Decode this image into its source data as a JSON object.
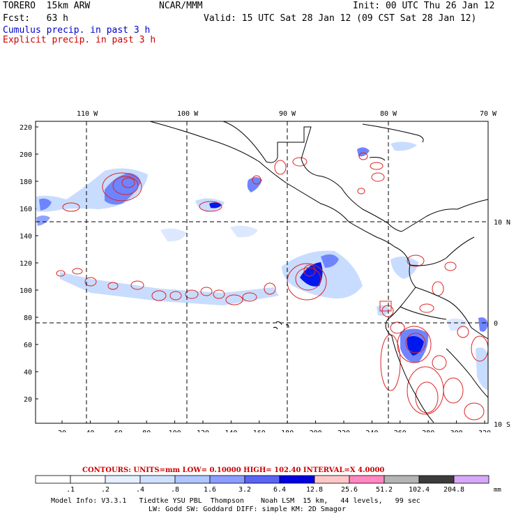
{
  "header": {
    "model": "TORERO  15km ARW",
    "center": "NCAR/MMM",
    "init": "Init: 00 UTC Thu 26 Jan 12",
    "fcst": "Fcst:   63 h",
    "valid": "Valid: 15 UTC Sat 28 Jan 12 (09 CST Sat 28 Jan 12)",
    "cumulus": "Cumulus precip. in past 3 h",
    "explicit": "Explicit precip. in past 3 h"
  },
  "map": {
    "top_lon_labels": [
      "110 W",
      "100 W",
      "90 W",
      "80 W",
      "70 W"
    ],
    "right_lat_labels": [
      "10 N",
      "0",
      "10 S"
    ],
    "y_ticks": [
      "220",
      "200",
      "180",
      "160",
      "140",
      "120",
      "100",
      "80",
      "60",
      "40",
      "20"
    ],
    "x_ticks": [
      "20",
      "40",
      "60",
      "80",
      "100",
      "120",
      "140",
      "160",
      "180",
      "200",
      "220",
      "240",
      "260",
      "280",
      "300",
      "320"
    ],
    "colors": {
      "contour": "#dd2222",
      "coast": "#000000",
      "cumulus_light": "#c8dcff",
      "cumulus_mid": "#6f84ff",
      "cumulus_strong": "#0018ee"
    }
  },
  "legend": {
    "contours_line": "CONTOURS:  UNITS=mm  LOW= 0.10000      HIGH=  102.40      INTERVAL=X  4.0000",
    "levels": [
      ".1",
      ".2",
      ".4",
      ".8",
      "1.6",
      "3.2",
      "6.4",
      "12.8",
      "25.6",
      "51.2",
      "102.4",
      "204.8"
    ],
    "units": "mm",
    "colors": [
      "#ffffff",
      "#ffffff",
      "#e6f0ff",
      "#cfe0ff",
      "#b0c6ff",
      "#8c9dff",
      "#5a64f5",
      "#0000e0",
      "#ffc8c8",
      "#ff88c0",
      "#b4b4b4",
      "#3c3c3c",
      "#d8a8f8"
    ]
  },
  "footer": {
    "line1": "Model Info: V3.3.1   Tiedtke YSU PBL  Thompson    Noah LSM  15 km,   44 levels,   99 sec",
    "line2": "LW: Godd SW: Goddard DIFF: simple KM: 2D Smagor"
  }
}
